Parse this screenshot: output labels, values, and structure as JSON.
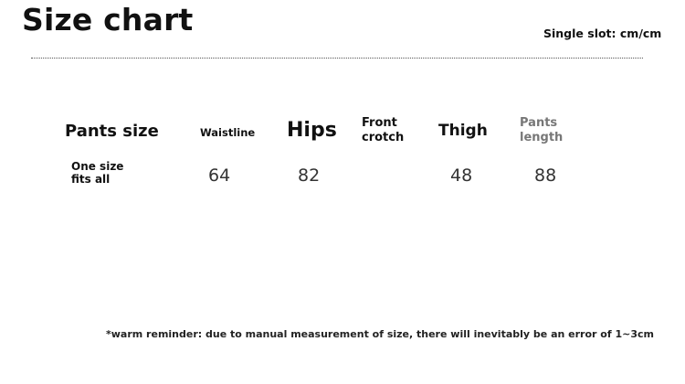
{
  "header": {
    "title": "Size chart",
    "unit_note": "Single slot: cm/cm"
  },
  "table": {
    "columns": {
      "pants_size": "Pants size",
      "waistline": "Waistline",
      "hips": "Hips",
      "front_crotch": [
        "Front",
        "crotch"
      ],
      "thigh": "Thigh",
      "pants_length": [
        "Pants",
        "length"
      ]
    },
    "rows": [
      {
        "size_label": [
          "One size",
          "fits all"
        ],
        "waistline": "64",
        "hips": "82",
        "front_crotch": "",
        "thigh": "48",
        "pants_length": "88"
      }
    ]
  },
  "footnote": "*warm reminder: due to manual measurement of size, there will inevitably be an error of 1~3cm"
}
